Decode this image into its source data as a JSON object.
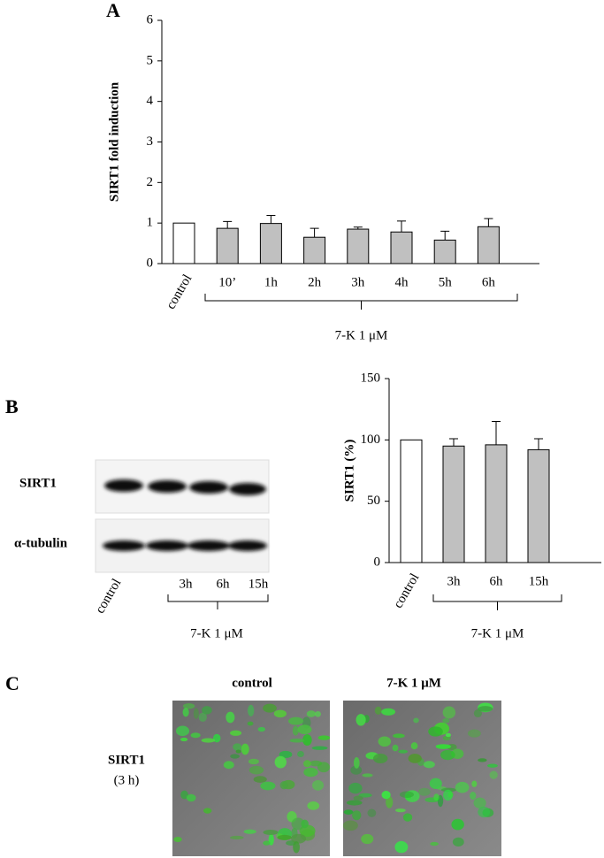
{
  "panels": {
    "a": "A",
    "b": "B",
    "c": "C"
  },
  "chart_data": [
    {
      "type": "bar",
      "ylabel": "SIRT1 fold induction",
      "categories": [
        "control",
        "10’",
        "1h",
        "2h",
        "3h",
        "4h",
        "5h",
        "6h"
      ],
      "values": [
        1,
        0.87,
        0.99,
        0.65,
        0.85,
        0.78,
        0.58,
        0.91
      ],
      "errors": [
        null,
        0.17,
        0.2,
        0.22,
        0.05,
        0.27,
        0.22,
        0.2
      ],
      "colors": [
        "#ffffff",
        "#c0c0c0",
        "#c0c0c0",
        "#c0c0c0",
        "#c0c0c0",
        "#c0c0c0",
        "#c0c0c0",
        "#c0c0c0"
      ],
      "ylim": [
        0,
        6
      ],
      "yticks": [
        0,
        1,
        2,
        3,
        4,
        5,
        6
      ],
      "bracket_label": "7-K 1 μM"
    },
    {
      "type": "bar",
      "ylabel": "SIRT1 (%)",
      "categories": [
        "control",
        "3h",
        "6h",
        "15h"
      ],
      "values": [
        100,
        95,
        96,
        92
      ],
      "errors": [
        null,
        6,
        19,
        9
      ],
      "colors": [
        "#ffffff",
        "#c0c0c0",
        "#c0c0c0",
        "#c0c0c0"
      ],
      "ylim": [
        0,
        150
      ],
      "yticks": [
        0,
        50,
        100,
        150
      ],
      "bracket_label": "7-K 1 μM"
    }
  ],
  "blot": {
    "rows": [
      "SIRT1",
      "α-tubulin"
    ],
    "lanes": [
      "control",
      "3h",
      "6h",
      "15h"
    ],
    "bracket_label": "7-K 1 μM"
  },
  "imaging": {
    "columns": [
      "control",
      "7-K 1 μM"
    ],
    "row_label": "SIRT1",
    "row_sublabel": "(3 h)"
  }
}
